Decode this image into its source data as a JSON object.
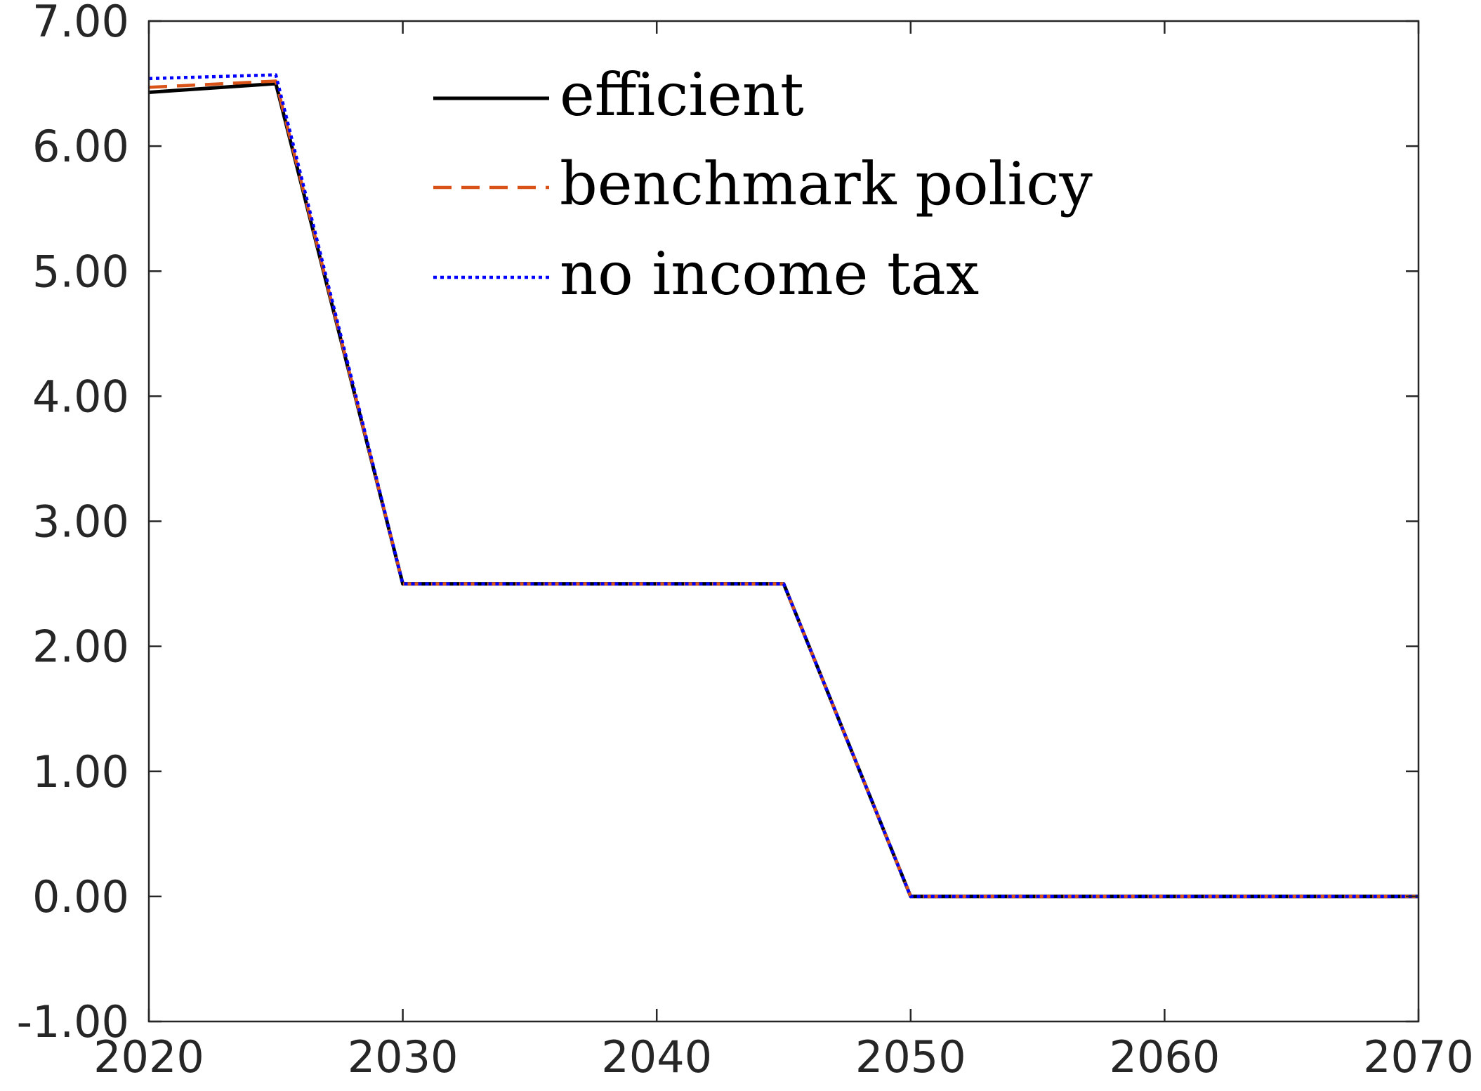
{
  "chart_data": {
    "type": "line",
    "title": "",
    "xlabel": "",
    "ylabel": "",
    "xlim": [
      2020,
      2070
    ],
    "ylim": [
      -1,
      7
    ],
    "x_ticks": [
      2020,
      2030,
      2040,
      2050,
      2060,
      2070
    ],
    "x_tick_labels": [
      "2020",
      "2030",
      "2040",
      "2050",
      "2060",
      "2070"
    ],
    "y_ticks": [
      -1,
      0,
      1,
      2,
      3,
      4,
      5,
      6,
      7
    ],
    "y_tick_labels": [
      "-1.00",
      "0.00",
      "1.00",
      "2.00",
      "3.00",
      "4.00",
      "5.00",
      "6.00",
      "7.00"
    ],
    "grid": false,
    "box": true,
    "legend_position": "top-center",
    "series": [
      {
        "name": "efficient",
        "color": "#000000",
        "style": "solid",
        "x": [
          2020,
          2025,
          2030,
          2035,
          2040,
          2045,
          2050,
          2055,
          2060,
          2065,
          2070
        ],
        "y": [
          6.43,
          6.5,
          2.5,
          2.5,
          2.5,
          2.5,
          0.0,
          0.0,
          0.0,
          0.0,
          0.0
        ]
      },
      {
        "name": "benchmark policy",
        "color": "#D95319",
        "style": "dashed",
        "x": [
          2020,
          2025,
          2030,
          2035,
          2040,
          2045,
          2050,
          2055,
          2060,
          2065,
          2070
        ],
        "y": [
          6.47,
          6.52,
          2.5,
          2.5,
          2.5,
          2.5,
          0.0,
          0.0,
          0.0,
          0.0,
          0.0
        ]
      },
      {
        "name": "no income tax",
        "color": "#0000FF",
        "style": "dotted",
        "x": [
          2020,
          2025,
          2030,
          2035,
          2040,
          2045,
          2050,
          2055,
          2060,
          2065,
          2070
        ],
        "y": [
          6.54,
          6.57,
          2.5,
          2.5,
          2.5,
          2.5,
          0.0,
          0.0,
          0.0,
          0.0,
          0.0
        ]
      }
    ]
  }
}
